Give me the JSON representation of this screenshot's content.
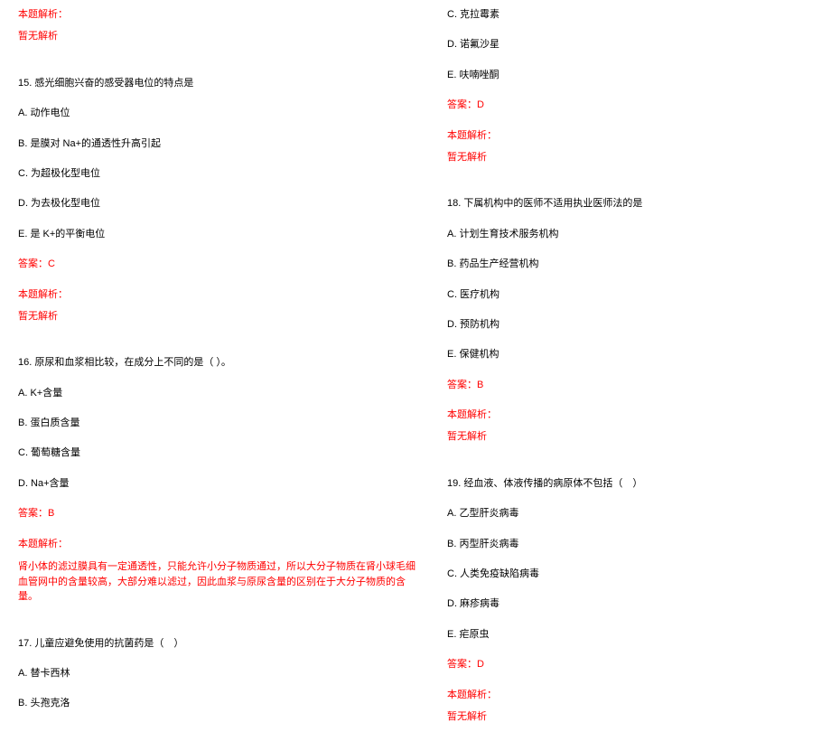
{
  "labels": {
    "analysis": "本题解析：",
    "none": "暂无解析",
    "answer_prefix": "答案："
  },
  "left": {
    "q15": {
      "title": "15. 感光细胞兴奋的感受器电位的特点是",
      "a": "A. 动作电位",
      "b": "B. 是膜对 Na+的通透性升高引起",
      "c": "C. 为超极化型电位",
      "d": "D. 为去极化型电位",
      "e": "E. 是 K+的平衡电位",
      "answer": "答案：C"
    },
    "q16": {
      "title": "16. 原尿和血浆相比较，在成分上不同的是（ ）。",
      "a": "A. K+含量",
      "b": "B. 蛋白质含量",
      "c": "C. 葡萄糖含量",
      "d": "D. Na+含量",
      "answer": "答案：B",
      "explain": "肾小体的滤过膜具有一定通透性，只能允许小分子物质通过，所以大分子物质在肾小球毛细血管网中的含量较高，大部分难以滤过，因此血浆与原尿含量的区别在于大分子物质的含量。"
    },
    "q17": {
      "title": "17. 儿童应避免使用的抗菌药是（　）",
      "a": "A. 替卡西林",
      "b": "B. 头孢克洛"
    }
  },
  "right": {
    "q17cont": {
      "c": "C. 克拉霉素",
      "d": "D. 诺氟沙星",
      "e": "E. 呋喃唑酮",
      "answer": "答案：D"
    },
    "q18": {
      "title": "18. 下属机构中的医师不适用执业医师法的是",
      "a": "A. 计划生育技术服务机构",
      "b": "B. 药品生产经营机构",
      "c": "C. 医疗机构",
      "d": "D. 预防机构",
      "e": "E. 保健机构",
      "answer": "答案：B"
    },
    "q19": {
      "title": "19. 经血液、体液传播的病原体不包括（　）",
      "a": "A. 乙型肝炎病毒",
      "b": "B. 丙型肝炎病毒",
      "c": "C. 人类免疫缺陷病毒",
      "d": "D. 麻疹病毒",
      "e": "E. 疟原虫",
      "answer": "答案：D"
    }
  }
}
